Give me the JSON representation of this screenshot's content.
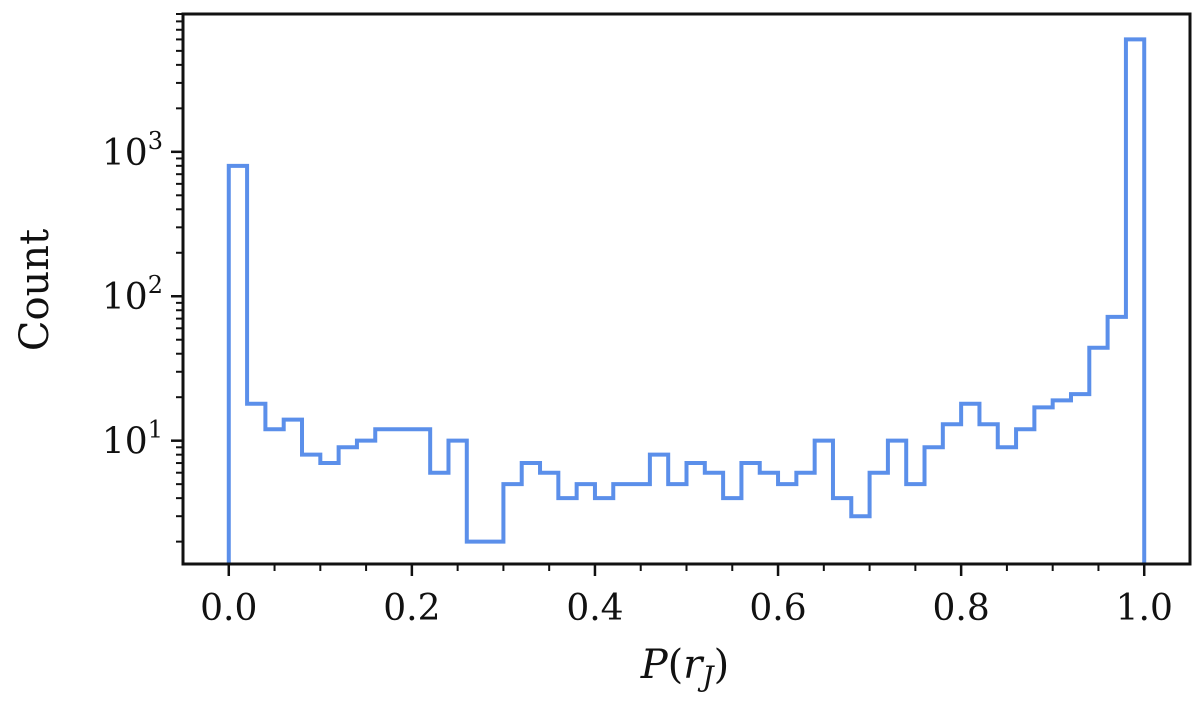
{
  "chart_data": {
    "type": "histogram",
    "xlabel_main": "P",
    "xlabel_open": "(",
    "xlabel_var": "r",
    "xlabel_sub": "J",
    "xlabel_close": ")",
    "ylabel": "Count",
    "xlim": [
      -0.05,
      1.05
    ],
    "ylim": [
      1.4,
      9000
    ],
    "yscale": "log",
    "grid": false,
    "xticks": [
      0.0,
      0.2,
      0.4,
      0.6,
      0.8,
      1.0
    ],
    "xtick_labels": [
      "0.0",
      "0.2",
      "0.4",
      "0.6",
      "0.8",
      "1.0"
    ],
    "yticks": [
      {
        "value": 10,
        "base": "10",
        "exp": "1"
      },
      {
        "value": 100,
        "base": "10",
        "exp": "2"
      },
      {
        "value": 1000,
        "base": "10",
        "exp": "3"
      }
    ],
    "series": [
      {
        "color": "#5b8fea",
        "bin_edges": [
          0.0,
          0.02,
          0.04,
          0.06,
          0.08,
          0.1,
          0.12,
          0.14,
          0.16,
          0.18,
          0.2,
          0.22,
          0.24,
          0.26,
          0.28,
          0.3,
          0.32,
          0.34,
          0.36,
          0.38,
          0.4,
          0.42,
          0.44,
          0.46,
          0.48,
          0.5,
          0.52,
          0.54,
          0.56,
          0.58,
          0.6,
          0.62,
          0.64,
          0.66,
          0.68,
          0.7,
          0.72,
          0.74,
          0.76,
          0.78,
          0.8,
          0.82,
          0.84,
          0.86,
          0.88,
          0.9,
          0.92,
          0.94,
          0.96,
          0.98,
          1.0
        ],
        "counts": [
          800,
          18,
          12,
          14,
          8,
          7,
          9,
          10,
          12,
          12,
          12,
          6,
          10,
          2,
          2,
          5,
          7,
          6,
          4,
          5,
          4,
          5,
          5,
          8,
          5,
          7,
          6,
          4,
          7,
          6,
          5,
          6,
          10,
          4,
          3,
          6,
          10,
          5,
          9,
          13,
          18,
          13,
          9,
          12,
          17,
          19,
          21,
          44,
          72,
          6000
        ]
      }
    ]
  }
}
